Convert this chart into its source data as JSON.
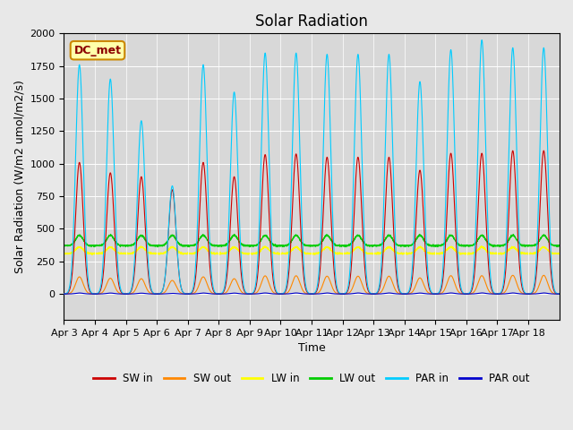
{
  "title": "Solar Radiation",
  "ylabel": "Solar Radiation (W/m2 umol/m2/s)",
  "xlabel": "Time",
  "ylim": [
    -200,
    2000
  ],
  "annotation": "DC_met",
  "x_tick_labels": [
    "Apr 3",
    "Apr 4",
    "Apr 5",
    "Apr 6",
    "Apr 7",
    "Apr 8",
    "Apr 9",
    "Apr 10",
    "Apr 11",
    "Apr 12",
    "Apr 13",
    "Apr 14",
    "Apr 15",
    "Apr 16",
    "Apr 17",
    "Apr 18"
  ],
  "series": {
    "SW_in": {
      "color": "#cc0000",
      "label": "SW in"
    },
    "SW_out": {
      "color": "#ff8800",
      "label": "SW out"
    },
    "LW_in": {
      "color": "#ffff00",
      "label": "LW in"
    },
    "LW_out": {
      "color": "#00cc00",
      "label": "LW out"
    },
    "PAR_in": {
      "color": "#00ccff",
      "label": "PAR in"
    },
    "PAR_out": {
      "color": "#0000cc",
      "label": "PAR out"
    }
  },
  "background_color": "#e8e8e8",
  "plot_bg_color": "#d8d8d8",
  "n_days": 16,
  "pts_per_day": 288,
  "title_fontsize": 12,
  "label_fontsize": 9,
  "tick_fontsize": 8,
  "peak_sw": [
    1010,
    930,
    900,
    800,
    1010,
    900,
    1070,
    1075,
    1050,
    1050,
    1050,
    950,
    1080,
    1080,
    1100,
    1100
  ],
  "peak_par": [
    1760,
    1650,
    1330,
    830,
    1760,
    1550,
    1850,
    1850,
    1840,
    1840,
    1840,
    1630,
    1875,
    1950,
    1890,
    1890
  ]
}
